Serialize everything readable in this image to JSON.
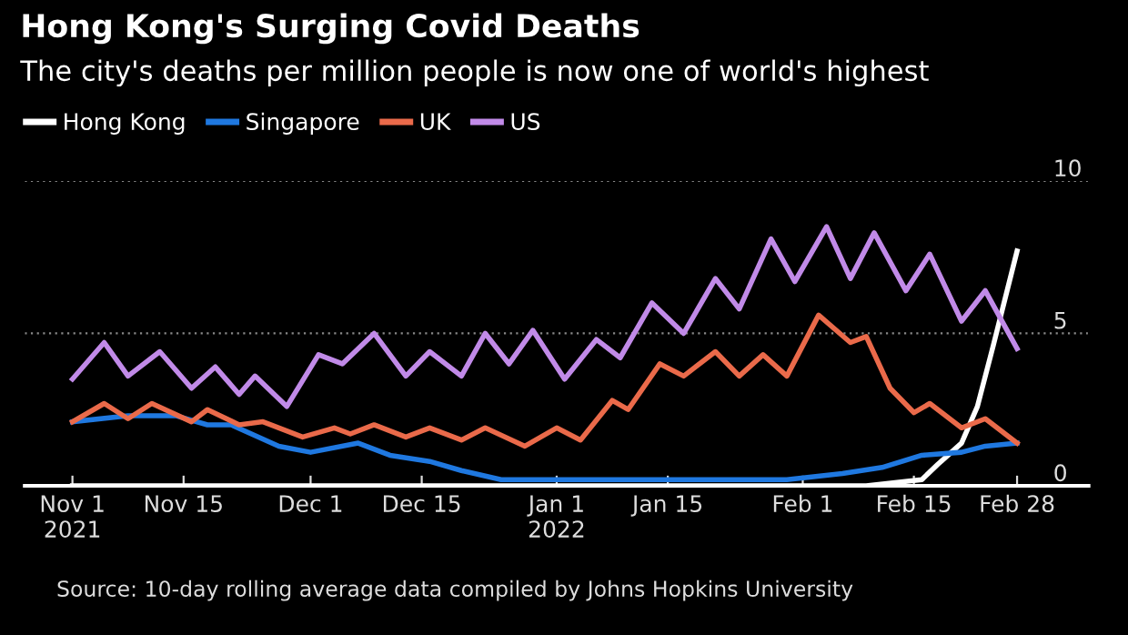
{
  "chart_data": {
    "type": "line",
    "title": "Hong Kong's Surging Covid Deaths",
    "subtitle": "The city's deaths per million people is now one of world's highest",
    "series": [
      {
        "name": "Hong Kong",
        "color": "#ffffff",
        "x": [
          "2021-11-01",
          "2022-02-09",
          "2022-02-16",
          "2022-02-18",
          "2022-02-21",
          "2022-02-23",
          "2022-02-25",
          "2022-02-28"
        ],
        "values": [
          0,
          0,
          0.2,
          0.7,
          1.4,
          2.6,
          4.6,
          7.7
        ]
      },
      {
        "name": "Singapore",
        "color": "#1f78e0",
        "x": [
          "2021-11-01",
          "2021-11-08",
          "2021-11-14",
          "2021-11-18",
          "2021-11-21",
          "2021-11-27",
          "2021-12-01",
          "2021-12-07",
          "2021-12-11",
          "2021-12-16",
          "2021-12-20",
          "2021-12-25",
          "2022-01-02",
          "2022-01-11",
          "2022-01-30",
          "2022-02-06",
          "2022-02-11",
          "2022-02-16",
          "2022-02-21",
          "2022-02-24",
          "2022-02-28"
        ],
        "values": [
          2.1,
          2.3,
          2.3,
          2.0,
          2.0,
          1.3,
          1.1,
          1.4,
          1.0,
          0.8,
          0.5,
          0.2,
          0.2,
          0.2,
          0.2,
          0.4,
          0.6,
          1.0,
          1.1,
          1.3,
          1.4
        ]
      },
      {
        "name": "UK",
        "color": "#ea6a4a",
        "x": [
          "2021-11-01",
          "2021-11-05",
          "2021-11-08",
          "2021-11-11",
          "2021-11-16",
          "2021-11-18",
          "2021-11-22",
          "2021-11-25",
          "2021-11-30",
          "2021-12-04",
          "2021-12-06",
          "2021-12-09",
          "2021-12-13",
          "2021-12-16",
          "2021-12-20",
          "2021-12-23",
          "2021-12-28",
          "2022-01-01",
          "2022-01-04",
          "2022-01-08",
          "2022-01-10",
          "2022-01-14",
          "2022-01-17",
          "2022-01-21",
          "2022-01-24",
          "2022-01-27",
          "2022-01-30",
          "2022-02-03",
          "2022-02-07",
          "2022-02-09",
          "2022-02-12",
          "2022-02-15",
          "2022-02-17",
          "2022-02-21",
          "2022-02-24",
          "2022-02-28"
        ],
        "values": [
          2.1,
          2.7,
          2.2,
          2.7,
          2.1,
          2.5,
          2.0,
          2.1,
          1.6,
          1.9,
          1.7,
          2.0,
          1.6,
          1.9,
          1.5,
          1.9,
          1.3,
          1.9,
          1.5,
          2.8,
          2.5,
          4.0,
          3.6,
          4.4,
          3.6,
          4.3,
          3.6,
          5.6,
          4.7,
          4.9,
          3.2,
          2.4,
          2.7,
          1.9,
          2.2,
          1.4
        ]
      },
      {
        "name": "US",
        "color": "#c18ae8",
        "x": [
          "2021-11-01",
          "2021-11-05",
          "2021-11-08",
          "2021-11-12",
          "2021-11-16",
          "2021-11-19",
          "2021-11-22",
          "2021-11-24",
          "2021-11-28",
          "2021-12-02",
          "2021-12-05",
          "2021-12-09",
          "2021-12-13",
          "2021-12-16",
          "2021-12-20",
          "2021-12-23",
          "2021-12-26",
          "2021-12-29",
          "2022-01-02",
          "2022-01-06",
          "2022-01-09",
          "2022-01-13",
          "2022-01-17",
          "2022-01-21",
          "2022-01-24",
          "2022-01-28",
          "2022-01-31",
          "2022-02-04",
          "2022-02-07",
          "2022-02-10",
          "2022-02-14",
          "2022-02-17",
          "2022-02-21",
          "2022-02-24",
          "2022-02-28"
        ],
        "values": [
          3.5,
          4.7,
          3.6,
          4.4,
          3.2,
          3.9,
          3.0,
          3.6,
          2.6,
          4.3,
          4.0,
          5.0,
          3.6,
          4.4,
          3.6,
          5.0,
          4.0,
          5.1,
          3.5,
          4.8,
          4.2,
          6.0,
          5.0,
          6.8,
          5.8,
          8.1,
          6.7,
          8.5,
          6.8,
          8.3,
          6.4,
          7.6,
          5.4,
          6.4,
          4.5
        ]
      }
    ],
    "xlim": [
      "2021-10-26",
      "2022-03-09"
    ],
    "xticks": [
      {
        "value": "2021-11-01",
        "label": "Nov 1\n2021"
      },
      {
        "value": "2021-11-15",
        "label": "Nov 15"
      },
      {
        "value": "2021-12-01",
        "label": "Dec 1"
      },
      {
        "value": "2021-12-15",
        "label": "Dec 15"
      },
      {
        "value": "2022-01-01",
        "label": "Jan 1\n2022"
      },
      {
        "value": "2022-01-15",
        "label": "Jan 15"
      },
      {
        "value": "2022-02-01",
        "label": "Feb 1"
      },
      {
        "value": "2022-02-15",
        "label": "Feb 15"
      },
      {
        "value": "2022-02-28",
        "label": "Feb 28"
      }
    ],
    "ylim": [
      0,
      10
    ],
    "yticks": [
      0,
      5,
      10
    ],
    "grid": "y",
    "legend": "top left",
    "marker": "none",
    "line_style": "solid",
    "annotations": [
      "Source: 10-day rolling average data compiled by Johns Hopkins University"
    ]
  }
}
